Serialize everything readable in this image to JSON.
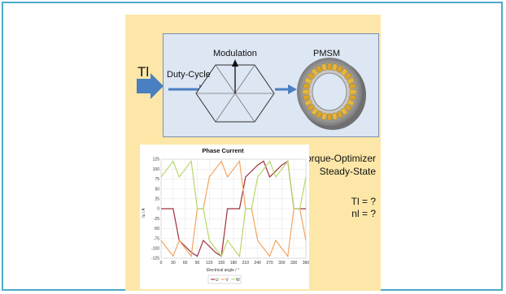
{
  "diagram": {
    "input_label": "Tl",
    "duty_cycle_label": "Duty-Cycle",
    "modulation_label": "Modulation",
    "pmsm_label": "PMSM",
    "right_text": {
      "line1": "Torque-Optimizer",
      "line2": "Steady-State",
      "line3": "Tl = ?",
      "line4": "nl = ?"
    },
    "colors": {
      "frame": "#4bacc6",
      "panel": "#fde7a8",
      "module_box": "#dde6f3",
      "arrow": "#4a7fc1"
    },
    "icons": [
      "input-arrow-icon",
      "hexagon-modulation-icon",
      "stator-ring-icon"
    ]
  },
  "chart_data": {
    "type": "line",
    "title": "Phase Current",
    "xlabel": "Electrical angle / °",
    "ylabel": "Iu / A",
    "xlim": [
      0,
      360
    ],
    "ylim": [
      -125,
      125
    ],
    "xticks": [
      0,
      30,
      60,
      90,
      120,
      150,
      180,
      210,
      240,
      270,
      300,
      330,
      360
    ],
    "yticks": [
      125,
      100,
      75,
      50,
      25,
      0,
      -25,
      -50,
      -75,
      -100,
      -125
    ],
    "grid": true,
    "legend": "bottom",
    "x": [
      0,
      15,
      30,
      45,
      60,
      75,
      90,
      105,
      120,
      135,
      150,
      165,
      180,
      195,
      210,
      225,
      240,
      255,
      270,
      285,
      300,
      315,
      330,
      345,
      360
    ],
    "series": [
      {
        "name": "U",
        "color": "#a0313e",
        "values": [
          0,
          0,
          0,
          -80,
          -95,
          -110,
          -120,
          -80,
          -95,
          -110,
          -120,
          0,
          0,
          0,
          80,
          95,
          110,
          120,
          80,
          95,
          110,
          120,
          0,
          0,
          0
        ]
      },
      {
        "name": "V",
        "color": "#f4a460",
        "values": [
          -80,
          -100,
          -120,
          -80,
          -100,
          -120,
          0,
          0,
          80,
          100,
          120,
          80,
          100,
          120,
          0,
          0,
          -80,
          -100,
          -120,
          -80,
          -100,
          -120,
          0,
          0,
          -80
        ]
      },
      {
        "name": "W",
        "color": "#b9d76b",
        "values": [
          80,
          100,
          120,
          80,
          100,
          120,
          0,
          0,
          -80,
          -100,
          -120,
          -80,
          -100,
          -120,
          0,
          0,
          80,
          100,
          120,
          80,
          100,
          120,
          0,
          0,
          80
        ]
      }
    ]
  }
}
